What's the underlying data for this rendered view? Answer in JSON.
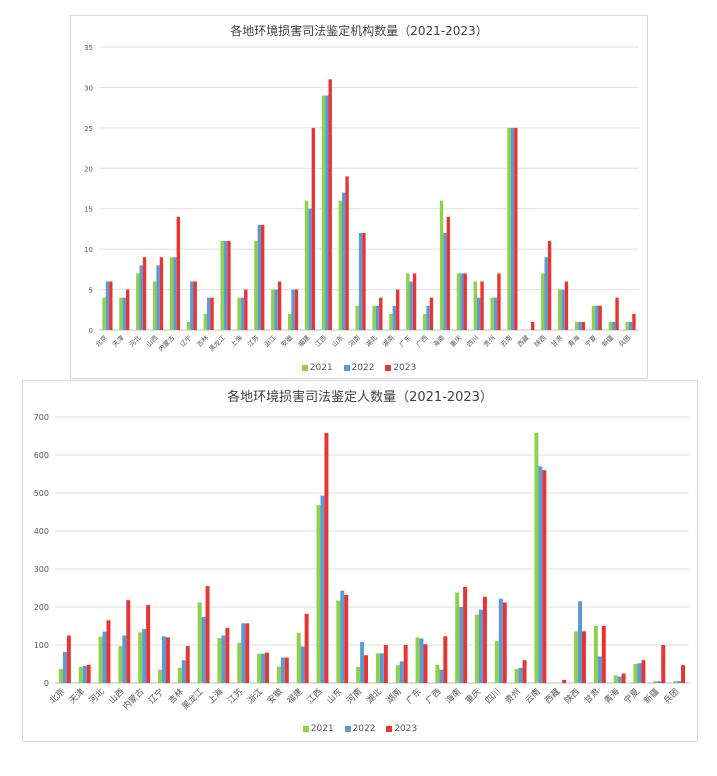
{
  "colors": {
    "2021": "#8ed14a",
    "2022": "#5b9bd5",
    "2023": "#e83434",
    "grid": "#e0e0e0",
    "axis": "#bfbfbf",
    "text": "#595959"
  },
  "chart_data": [
    {
      "type": "bar",
      "title": "各地环境损害司法鉴定机构数量（2021-2023）",
      "xlabel": "",
      "ylabel": "",
      "ylim": [
        0,
        35
      ],
      "yticks": [
        0,
        5,
        10,
        15,
        20,
        25,
        30,
        35
      ],
      "grid": true,
      "legend_position": "bottom",
      "categories": [
        "北京",
        "天津",
        "河北",
        "山西",
        "内蒙古",
        "辽宁",
        "吉林",
        "黑龙江",
        "上海",
        "江苏",
        "浙江",
        "安徽",
        "福建",
        "江西",
        "山东",
        "河南",
        "湖北",
        "湖南",
        "广东",
        "广西",
        "海南",
        "重庆",
        "四川",
        "贵州",
        "云南",
        "西藏",
        "陕西",
        "甘肃",
        "青海",
        "宁夏",
        "新疆",
        "兵团"
      ],
      "series": [
        {
          "name": "2021",
          "values": [
            4,
            4,
            7,
            6,
            9,
            1,
            2,
            11,
            4,
            11,
            5,
            2,
            16,
            29,
            16,
            3,
            3,
            2,
            7,
            2,
            16,
            7,
            6,
            4,
            25,
            0,
            7,
            5,
            1,
            3,
            1,
            1
          ]
        },
        {
          "name": "2022",
          "values": [
            6,
            4,
            8,
            8,
            9,
            6,
            4,
            11,
            4,
            13,
            5,
            5,
            15,
            29,
            17,
            12,
            3,
            3,
            6,
            3,
            12,
            7,
            4,
            4,
            25,
            0,
            9,
            5,
            1,
            3,
            1,
            1
          ]
        },
        {
          "name": "2023",
          "values": [
            6,
            5,
            9,
            9,
            14,
            6,
            4,
            11,
            5,
            13,
            6,
            5,
            25,
            31,
            19,
            12,
            4,
            5,
            7,
            4,
            14,
            7,
            6,
            7,
            25,
            1,
            11,
            6,
            1,
            3,
            4,
            2
          ]
        }
      ]
    },
    {
      "type": "bar",
      "title": "各地环境损害司法鉴定人数量（2021-2023）",
      "xlabel": "",
      "ylabel": "",
      "ylim": [
        0,
        700
      ],
      "yticks": [
        0,
        100,
        200,
        300,
        400,
        500,
        600,
        700
      ],
      "grid": true,
      "legend_position": "bottom",
      "categories": [
        "北京",
        "天津",
        "河北",
        "山西",
        "内蒙古",
        "辽宁",
        "吉林",
        "黑龙江",
        "上海",
        "江苏",
        "浙江",
        "安徽",
        "福建",
        "江西",
        "山东",
        "河南",
        "湖北",
        "湖南",
        "广东",
        "广西",
        "海南",
        "重庆",
        "四川",
        "贵州",
        "云南",
        "西藏",
        "陕西",
        "甘肃",
        "青海",
        "宁夏",
        "新疆",
        "兵团"
      ],
      "series": [
        {
          "name": "2021",
          "values": [
            37,
            42,
            122,
            97,
            133,
            35,
            40,
            212,
            118,
            106,
            77,
            43,
            132,
            468,
            217,
            42,
            78,
            47,
            120,
            48,
            238,
            180,
            110,
            37,
            658,
            0,
            136,
            150,
            20,
            50,
            5,
            5
          ]
        },
        {
          "name": "2022",
          "values": [
            82,
            45,
            135,
            125,
            142,
            123,
            60,
            174,
            125,
            157,
            77,
            67,
            96,
            493,
            243,
            108,
            78,
            57,
            117,
            35,
            200,
            193,
            222,
            40,
            570,
            0,
            215,
            70,
            17,
            52,
            5,
            5
          ]
        },
        {
          "name": "2023",
          "values": [
            125,
            48,
            165,
            218,
            205,
            120,
            97,
            255,
            145,
            157,
            80,
            67,
            182,
            658,
            232,
            73,
            100,
            100,
            102,
            123,
            253,
            227,
            212,
            60,
            560,
            8,
            136,
            150,
            25,
            60,
            100,
            47
          ]
        }
      ]
    }
  ]
}
